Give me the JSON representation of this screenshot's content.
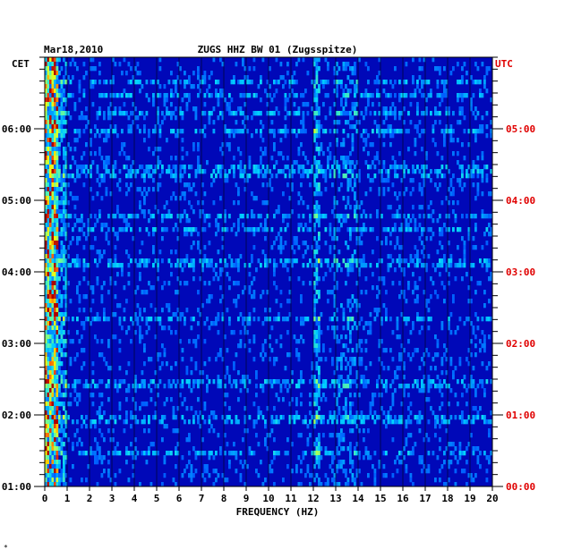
{
  "chart_data": {
    "type": "heatmap",
    "date": "Mar18,2010",
    "title": "ZUGS HHZ BW 01 (Zugsspitze)",
    "xlabel": "FREQUENCY (HZ)",
    "left_axis_label": "CET",
    "right_axis_label": "UTC",
    "xlim": [
      0,
      20
    ],
    "x_ticks": [
      "0",
      "1",
      "2",
      "3",
      "4",
      "5",
      "6",
      "7",
      "8",
      "9",
      "10",
      "11",
      "12",
      "13",
      "14",
      "15",
      "16",
      "17",
      "18",
      "19",
      "20"
    ],
    "y_ticks_left": [
      "06:00",
      "05:00",
      "04:00",
      "03:00",
      "02:00",
      "01:00"
    ],
    "y_ticks_right": [
      "05:00",
      "04:00",
      "03:00",
      "02:00",
      "01:00",
      "00:00"
    ],
    "colors": {
      "background": "#0010c8",
      "low": "#0000a0",
      "mid": "#00d0ff",
      "high": "#ffff00",
      "peak": "#c00000",
      "utc_label": "#e00000"
    }
  }
}
